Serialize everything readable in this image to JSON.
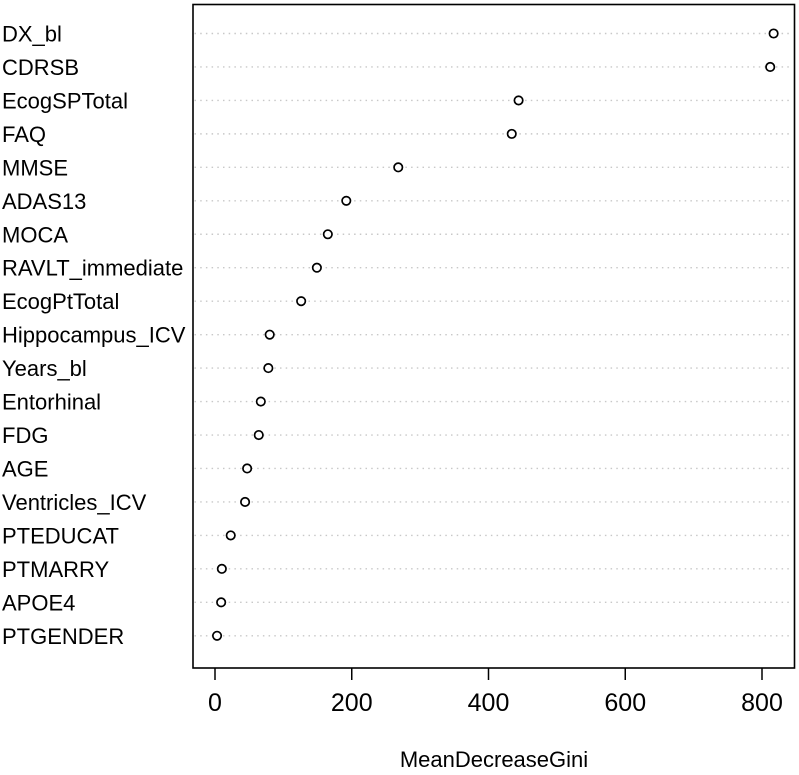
{
  "figure": {
    "kind": "r-variable-importance-dotchart",
    "background": "#ffffff"
  },
  "chart_data": {
    "type": "scatter",
    "title": "",
    "xlabel": "MeanDecreaseGini",
    "ylabel": "",
    "categories": [
      "DX_bl",
      "CDRSB",
      "EcogSPTotal",
      "FAQ",
      "MMSE",
      "ADAS13",
      "MOCA",
      "RAVLT_immediate",
      "EcogPtTotal",
      "Hippocampus_ICV",
      "Years_bl",
      "Entorhinal",
      "FDG",
      "AGE",
      "Ventricles_ICV",
      "PTEDUCAT",
      "PTMARRY",
      "APOE4",
      "PTGENDER"
    ],
    "values": [
      817,
      812,
      444,
      434,
      268,
      192,
      165,
      149,
      126,
      80,
      78,
      67,
      64,
      47,
      44,
      23,
      10,
      9,
      3
    ],
    "x_ticks": [
      0,
      200,
      400,
      600,
      800
    ],
    "xlim": [
      0,
      820
    ],
    "grid": "horizontal-dotted",
    "legend": "none",
    "point_style": "open-circle",
    "colors": {
      "point_stroke": "#000000",
      "point_fill": "#ffffff",
      "grid": "#c8c8c8",
      "box": "#000000",
      "text": "#000000"
    }
  }
}
